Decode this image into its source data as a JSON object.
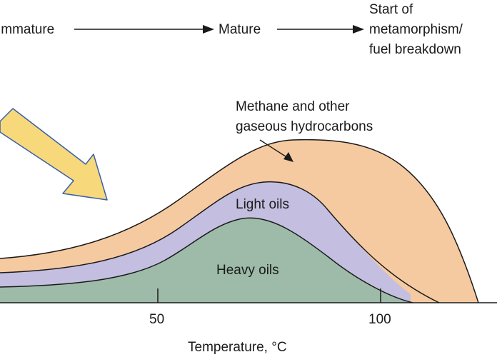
{
  "stages": {
    "immature": "Immature",
    "mature": "Mature",
    "metamorphism_line1": "Start of",
    "metamorphism_line2": "metamorphism/",
    "metamorphism_line3": "fuel breakdown"
  },
  "bands": {
    "methane_line1": "Methane and other",
    "methane_line2": "gaseous hydrocarbons",
    "light_oils": "Light oils",
    "heavy_oils": "Heavy oils"
  },
  "axis": {
    "tick_50": "50",
    "tick_100": "100",
    "label": "Temperature, °C"
  },
  "colors": {
    "gas": "#f6caa1",
    "light_oil": "#c4bfe0",
    "heavy_oil": "#9dbba8",
    "arrow_fill": "#f7d97c",
    "arrow_stroke": "#3a5fa8",
    "outline": "#1a1a1a"
  }
}
